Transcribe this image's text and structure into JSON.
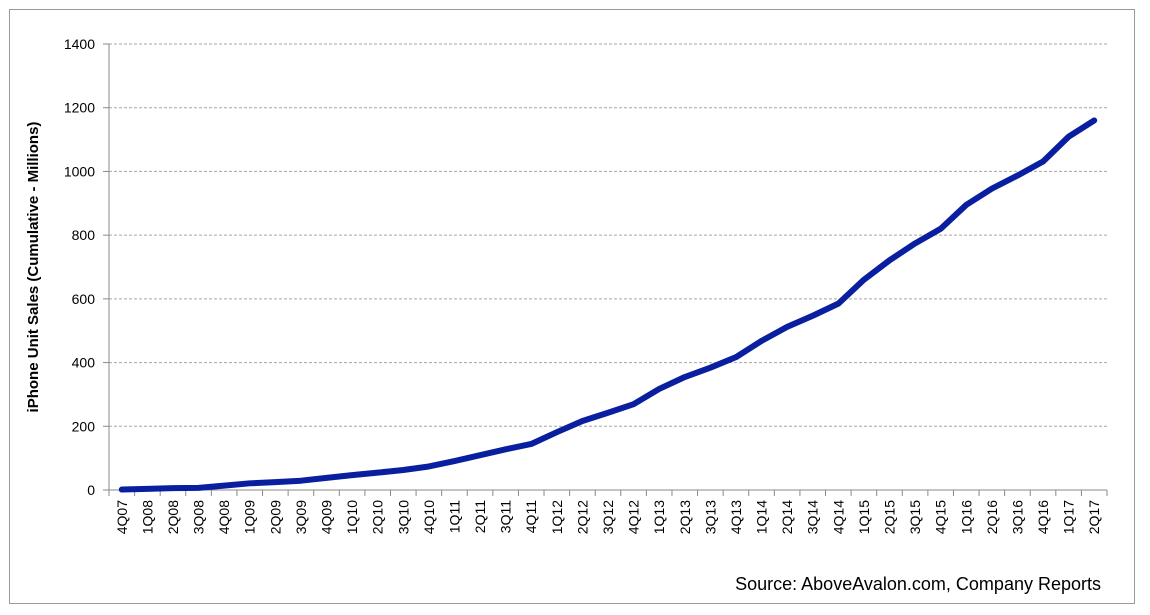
{
  "chart_data": {
    "type": "line",
    "title": "",
    "xlabel": "",
    "ylabel": "iPhone Unit Sales (Cumulative - Millions)",
    "source": "Source: AboveAvalon.com, Company Reports",
    "ylim": [
      0,
      1400
    ],
    "yticks": [
      0,
      200,
      400,
      600,
      800,
      1000,
      1200,
      1400
    ],
    "grid": true,
    "legend": "none",
    "line_color": "#0A1FA0",
    "categories": [
      "4Q07",
      "1Q08",
      "2Q08",
      "3Q08",
      "4Q08",
      "1Q09",
      "2Q09",
      "3Q09",
      "4Q09",
      "1Q10",
      "2Q10",
      "3Q10",
      "4Q10",
      "1Q11",
      "2Q11",
      "3Q11",
      "4Q11",
      "1Q12",
      "2Q12",
      "3Q12",
      "4Q12",
      "1Q13",
      "2Q13",
      "3Q13",
      "4Q13",
      "1Q14",
      "2Q14",
      "3Q14",
      "4Q14",
      "1Q15",
      "2Q15",
      "3Q15",
      "4Q15",
      "1Q16",
      "2Q16",
      "3Q16",
      "4Q16",
      "1Q17",
      "2Q17"
    ],
    "values": [
      1.4,
      3.7,
      6.0,
      6.7,
      13.6,
      21.0,
      24.7,
      29.2,
      38.0,
      46.8,
      54.4,
      62.8,
      73.8,
      90.7,
      109.4,
      127.8,
      144.5,
      181.5,
      216.6,
      242.6,
      269.4,
      317.2,
      354.6,
      384.0,
      417.0,
      468.0,
      512.0,
      547.0,
      585.0,
      660.0,
      721.0,
      774.0,
      820.0,
      895.0,
      946.0,
      987.0,
      1031.0,
      1109.0,
      1160.0
    ]
  }
}
